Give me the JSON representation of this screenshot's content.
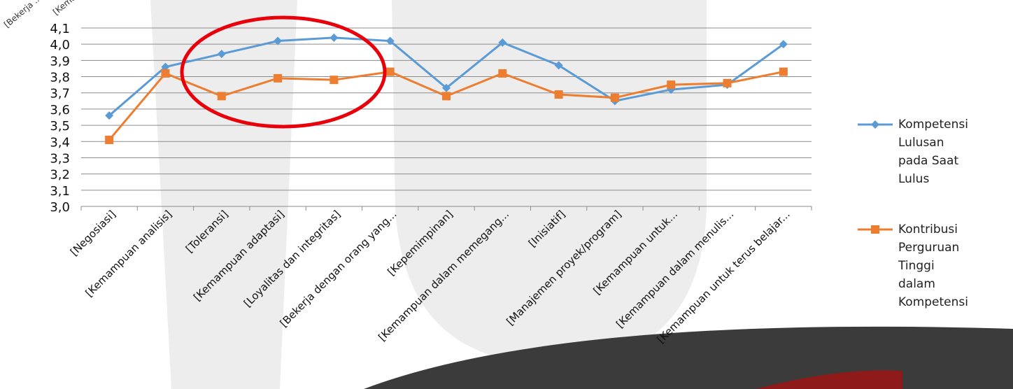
{
  "chart_data": {
    "type": "line",
    "categories": [
      "[Negosiasi]",
      "[Kemampuan analisis]",
      "[Toleransi]",
      "[Kemampuan adaptasi]",
      "[Loyalitas dan integritas]",
      "[Bekerja dengan orang yang...",
      "[Kepemimpinan]",
      "[Kemampuan dalam memegang...",
      "[Inisiatif]",
      "[Manajemen proyek/program]",
      "[Kemampuan untuk...",
      "[Kemampuan dalam menulis...",
      "[Kemampuan untuk terus belajar..."
    ],
    "series": [
      {
        "name": "Kompetensi Lulusan pada Saat Lulus",
        "color": "#5b9bd5",
        "marker": "diamond",
        "values": [
          3.56,
          3.86,
          3.94,
          4.02,
          4.04,
          4.02,
          3.73,
          4.01,
          3.87,
          3.65,
          3.72,
          3.75,
          4.0
        ]
      },
      {
        "name": "Kontribusi Perguruan Tinggi dalam Kompetensi",
        "color": "#ed7d31",
        "marker": "square",
        "values": [
          3.41,
          3.82,
          3.68,
          3.79,
          3.78,
          3.83,
          3.68,
          3.82,
          3.69,
          3.67,
          3.75,
          3.76,
          3.83
        ]
      }
    ],
    "ylim": [
      3.0,
      4.1
    ],
    "yticks": [
      {
        "value": 3.0,
        "label": "3,0"
      },
      {
        "value": 3.1,
        "label": "3,1"
      },
      {
        "value": 3.2,
        "label": "3,2"
      },
      {
        "value": 3.3,
        "label": "3,3"
      },
      {
        "value": 3.4,
        "label": "3,4"
      },
      {
        "value": 3.5,
        "label": "3,5"
      },
      {
        "value": 3.6,
        "label": "3,6"
      },
      {
        "value": 3.7,
        "label": "3,7"
      },
      {
        "value": 3.8,
        "label": "3,8"
      },
      {
        "value": 3.9,
        "label": "3,9"
      },
      {
        "value": 4.0,
        "label": "4,0"
      },
      {
        "value": 4.1,
        "label": "4,1"
      }
    ],
    "grid": true,
    "legend_position": "right"
  },
  "fragments": [
    "[Bekerja ...",
    "[Kemampu..."
  ]
}
